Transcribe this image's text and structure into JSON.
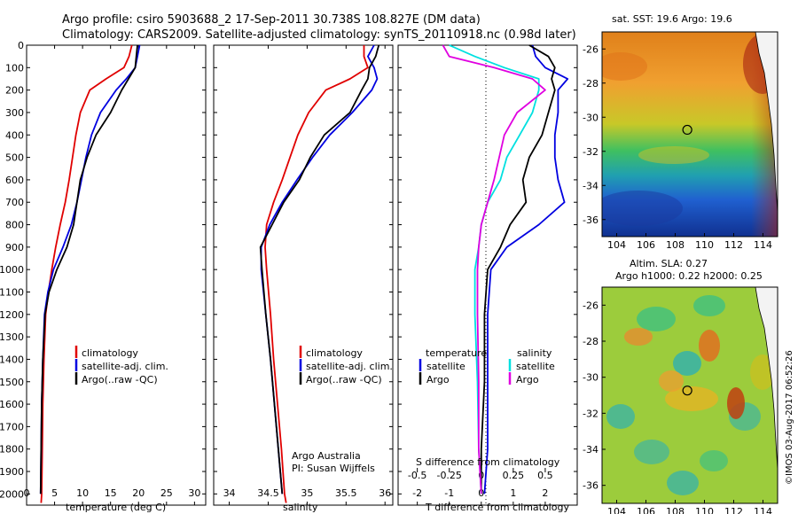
{
  "title_line1": "Argo profile: csiro 5903688_2 17-Sep-2011 30.738S 108.827E (DM data)",
  "title_line2": "Climatology: CARS2009. Satellite-adjusted climatology: synTS_20110918.nc (0.98d later)",
  "footer_credit": "©IMOS 03-Aug-2017 06:52:26",
  "colors": {
    "climatology": "#e00000",
    "satellite": "#0000e0",
    "argo": "#000000",
    "satellite_salinity": "#00e0e0",
    "argo_salinity": "#e000e0"
  },
  "chart_data": [
    {
      "type": "line",
      "panel": "temperature",
      "xlabel": "temperature (deg C)",
      "ylabel": "",
      "xlim": [
        0,
        32
      ],
      "xticks": [
        0,
        5,
        10,
        15,
        20,
        25,
        30
      ],
      "ylim": [
        2050,
        0
      ],
      "yticks": [
        0,
        100,
        200,
        300,
        400,
        500,
        600,
        700,
        800,
        900,
        1000,
        1100,
        1200,
        1300,
        1400,
        1500,
        1600,
        1700,
        1800,
        1900,
        2000
      ],
      "legend": [
        "climatology",
        "satellite-adj. clim.",
        "Argo(..raw -QC)"
      ],
      "series": [
        {
          "name": "climatology",
          "color": "#e00000",
          "x": [
            18.8,
            18.3,
            17.4,
            14.2,
            11.3,
            9.6,
            8.8,
            8.2,
            7.6,
            6.9,
            6.0,
            5.2,
            4.5,
            3.9,
            3.4,
            3.1,
            2.9,
            2.8,
            2.7,
            2.6
          ],
          "y": [
            0,
            50,
            100,
            150,
            200,
            300,
            400,
            500,
            600,
            700,
            800,
            900,
            1000,
            1100,
            1200,
            1400,
            1600,
            1800,
            2000,
            2040
          ]
        },
        {
          "name": "satellite-adj. clim.",
          "color": "#0000e0",
          "x": [
            20.2,
            19.8,
            19.4,
            17.8,
            16.0,
            13.2,
            11.6,
            10.6,
            9.8,
            9.0,
            8.0,
            6.5,
            4.8,
            3.8,
            3.2,
            2.9,
            2.7,
            2.6,
            2.5
          ],
          "y": [
            0,
            50,
            100,
            150,
            200,
            300,
            400,
            500,
            600,
            700,
            800,
            900,
            1000,
            1100,
            1200,
            1400,
            1600,
            1800,
            2000
          ]
        },
        {
          "name": "Argo(..raw -QC)",
          "color": "#000000",
          "x": [
            19.8,
            19.6,
            19.4,
            18.2,
            17.0,
            15.0,
            12.4,
            10.8,
            9.6,
            9.0,
            8.4,
            7.2,
            5.4,
            4.0,
            3.3,
            2.9,
            2.7,
            2.6,
            2.5
          ],
          "y": [
            0,
            50,
            100,
            150,
            200,
            300,
            400,
            500,
            600,
            700,
            800,
            900,
            1000,
            1100,
            1200,
            1400,
            1600,
            1800,
            2000
          ]
        }
      ]
    },
    {
      "type": "line",
      "panel": "salinity",
      "xlabel": "salinity",
      "ylabel": "",
      "xlim": [
        33.8,
        36.1
      ],
      "xticks": [
        34,
        34.5,
        35,
        35.5,
        36
      ],
      "ylim": [
        2050,
        0
      ],
      "legend": [
        "climatology",
        "satellite-adj. clim.",
        "Argo(..raw -QC)"
      ],
      "annotations": [
        "Argo Australia",
        "PI: Susan Wijffels"
      ],
      "series": [
        {
          "name": "climatology",
          "color": "#e00000",
          "x": [
            35.73,
            35.73,
            35.78,
            35.55,
            35.24,
            35.02,
            34.88,
            34.78,
            34.68,
            34.57,
            34.48,
            34.46,
            34.48,
            34.53,
            34.57,
            34.62,
            34.67,
            34.71,
            34.73
          ],
          "y": [
            0,
            50,
            100,
            150,
            200,
            300,
            400,
            500,
            600,
            700,
            800,
            900,
            1000,
            1200,
            1400,
            1600,
            1800,
            2000,
            2040
          ]
        },
        {
          "name": "satellite-adj. clim.",
          "color": "#0000e0",
          "x": [
            35.86,
            35.78,
            35.86,
            35.9,
            35.83,
            35.58,
            35.29,
            35.07,
            34.87,
            34.68,
            34.52,
            34.41,
            34.41,
            34.47,
            34.53,
            34.58,
            34.63,
            34.68
          ],
          "y": [
            0,
            50,
            100,
            150,
            200,
            300,
            400,
            500,
            600,
            700,
            800,
            900,
            1000,
            1200,
            1400,
            1600,
            1800,
            2000
          ]
        },
        {
          "name": "Argo(..raw -QC)",
          "color": "#000000",
          "x": [
            35.92,
            35.88,
            35.8,
            35.78,
            35.7,
            35.55,
            35.22,
            35.04,
            34.9,
            34.7,
            34.55,
            34.4,
            34.42,
            34.47,
            34.53,
            34.58,
            34.63,
            34.68
          ],
          "y": [
            0,
            50,
            100,
            150,
            200,
            300,
            400,
            500,
            600,
            700,
            800,
            900,
            1000,
            1200,
            1400,
            1600,
            1800,
            2000
          ]
        }
      ]
    },
    {
      "type": "line",
      "panel": "differences",
      "xlabel": "T difference from climatology",
      "xlabel_top": "S difference from climatology",
      "xlim_T": [
        -2.6,
        3.0
      ],
      "xticks_T": [
        -2,
        -1,
        0,
        1,
        2
      ],
      "xticks_S": [
        -0.5,
        -0.25,
        0,
        0.25,
        0.5
      ],
      "xlim_S": [
        -0.65,
        0.75
      ],
      "ylim": [
        2050,
        0
      ],
      "legend_titles": [
        "temperature",
        "salinity"
      ],
      "legend": [
        "satellite",
        "Argo",
        "satellite",
        "Argo"
      ],
      "series": [
        {
          "name": "satellite",
          "quantity": "temperature",
          "color": "#0000e0",
          "x": [
            1.6,
            1.7,
            2.0,
            2.7,
            2.4,
            2.4,
            2.3,
            2.3,
            2.4,
            2.6,
            1.8,
            0.8,
            0.3,
            0.2,
            0.2,
            0.2,
            0.1
          ],
          "y": [
            0,
            50,
            100,
            150,
            200,
            300,
            400,
            500,
            600,
            700,
            800,
            900,
            1000,
            1200,
            1500,
            1800,
            2000
          ]
        },
        {
          "name": "Argo",
          "quantity": "temperature",
          "color": "#000000",
          "x": [
            1.5,
            2.1,
            2.3,
            2.2,
            2.3,
            2.1,
            1.9,
            1.5,
            1.3,
            1.4,
            0.9,
            0.6,
            0.2,
            0.1,
            0.1,
            0.0,
            0.0
          ],
          "y": [
            0,
            50,
            100,
            150,
            200,
            300,
            400,
            500,
            600,
            700,
            800,
            900,
            1000,
            1200,
            1500,
            1800,
            2000
          ]
        },
        {
          "name": "satellite",
          "quantity": "salinity",
          "color": "#00e0e0",
          "x": [
            -0.25,
            -0.05,
            0.18,
            0.45,
            0.45,
            0.4,
            0.3,
            0.2,
            0.15,
            0.05,
            0.0,
            -0.02,
            -0.05,
            -0.05,
            -0.03,
            -0.02,
            0.0
          ],
          "y": [
            0,
            50,
            100,
            150,
            200,
            300,
            400,
            500,
            600,
            700,
            800,
            900,
            1000,
            1200,
            1500,
            1800,
            2000
          ]
        },
        {
          "name": "Argo",
          "quantity": "salinity",
          "color": "#e000e0",
          "x": [
            -0.3,
            -0.25,
            0.1,
            0.4,
            0.5,
            0.28,
            0.18,
            0.14,
            0.1,
            0.05,
            0.0,
            -0.02,
            -0.03,
            -0.03,
            -0.02,
            -0.02,
            0.0
          ],
          "y": [
            0,
            50,
            100,
            150,
            200,
            300,
            400,
            500,
            600,
            700,
            800,
            900,
            1000,
            1200,
            1500,
            1800,
            2000
          ]
        }
      ]
    },
    {
      "type": "heatmap",
      "panel": "sst_map",
      "title": "sat. SST: 19.6  Argo: 19.6",
      "xlim": [
        103,
        115
      ],
      "xticks": [
        104,
        106,
        108,
        110,
        112,
        114
      ],
      "ylim": [
        -37,
        -25
      ],
      "yticks": [
        -26,
        -28,
        -30,
        -32,
        -34,
        -36
      ],
      "marker": {
        "lon": 108.827,
        "lat": -30.738
      }
    },
    {
      "type": "heatmap",
      "panel": "sla_map",
      "title": "Altim. SLA: 0.27",
      "subtitle": "Argo h1000: 0.22  h2000: 0.25",
      "xlim": [
        103,
        115
      ],
      "xticks": [
        104,
        106,
        108,
        110,
        112,
        114
      ],
      "ylim": [
        -37,
        -25
      ],
      "yticks": [
        -26,
        -28,
        -30,
        -32,
        -34,
        -36
      ],
      "marker": {
        "lon": 108.827,
        "lat": -30.738
      }
    }
  ]
}
